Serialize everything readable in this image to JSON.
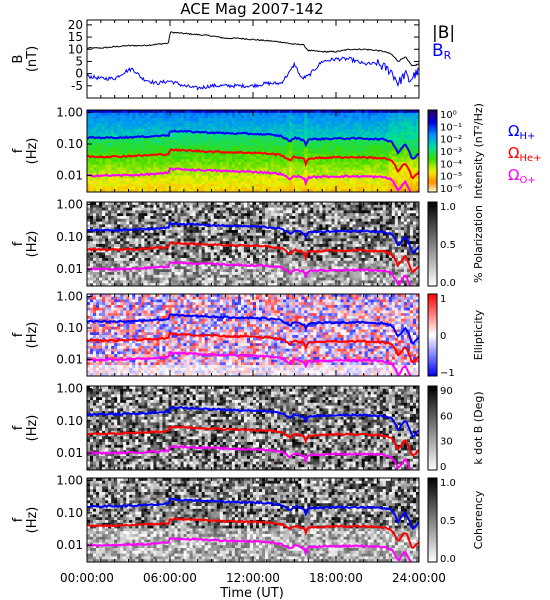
{
  "chart_data": {
    "type": "spectrogram",
    "title": "ACE Mag 2007-142",
    "xlabel": "Time (UT)",
    "xticks": [
      "00:00:00",
      "06:00:00",
      "12:00:00",
      "18:00:00",
      "24:00:00"
    ],
    "xlim_hours": [
      0,
      24
    ],
    "panels": [
      {
        "id": "B",
        "type": "line",
        "ylabel": "B",
        "yunit": "(nT)",
        "ylim": [
          -10,
          22
        ],
        "yticks": [
          "20",
          "15",
          "10",
          "5",
          "0",
          "-5"
        ],
        "legend": [
          "|B|",
          "B_R"
        ],
        "series": [
          {
            "name": "|B|",
            "color": "#000000",
            "x": [
              0,
              1,
              2,
              3,
              4,
              5,
              5.9,
              6.0,
              7,
              8,
              9,
              10,
              11,
              12,
              13,
              14,
              15,
              15.6,
              16,
              17,
              18,
              19,
              20,
              21,
              21.5,
              22,
              22.5,
              23,
              23.5,
              24
            ],
            "y": [
              10.5,
              10.5,
              11,
              11.5,
              11.5,
              12,
              12.5,
              17,
              16.5,
              16,
              15.5,
              14.5,
              14.5,
              14,
              13.5,
              13,
              12,
              12,
              9.5,
              9,
              9,
              10,
              10,
              9.5,
              9,
              8,
              5,
              7,
              3,
              4
            ]
          },
          {
            "name": "B_R",
            "color": "#0000ff",
            "x": [
              0,
              1,
              2,
              2.8,
              3.3,
              4,
              5,
              6,
              7,
              8,
              9,
              10,
              11,
              12,
              13,
              14,
              14.7,
              15,
              15.5,
              16,
              16.5,
              17,
              18,
              19,
              20,
              21,
              22,
              22.5,
              23,
              23.3,
              23.6,
              24
            ],
            "y": [
              -1,
              -2,
              -2,
              1,
              2,
              -2,
              -4,
              -3,
              -5,
              -6,
              -5,
              -5,
              -5,
              -5,
              -4,
              -4,
              1,
              4,
              -2,
              -1,
              2,
              5,
              6,
              6,
              4,
              4,
              1,
              -4,
              0,
              -3,
              -1,
              1
            ]
          }
        ]
      },
      {
        "id": "intensity",
        "type": "heatmap",
        "ylabel": "f",
        "yunit": "(Hz)",
        "yscale": "log",
        "ylim": [
          0.003,
          1.2
        ],
        "yticks": [
          "1.00",
          "0.10",
          "0.01"
        ],
        "colorbar_label": "Intensity (nT²/Hz)",
        "colorbar_ticks": [
          "10⁰",
          "10⁻¹",
          "10⁻²",
          "10⁻³",
          "10⁻⁴",
          "10⁻⁵",
          "10⁻⁶"
        ],
        "colorscale": "rainbow"
      },
      {
        "id": "polarization",
        "type": "heatmap",
        "ylabel": "f",
        "yunit": "(Hz)",
        "yscale": "log",
        "ylim": [
          0.003,
          1.2
        ],
        "yticks": [
          "1.00",
          "0.10",
          "0.01"
        ],
        "colorbar_label": "% Polarization",
        "colorbar_ticks": [
          "1.0",
          "0.5",
          "0.0"
        ],
        "colorscale": "gray"
      },
      {
        "id": "ellipticity",
        "type": "heatmap",
        "ylabel": "f",
        "yunit": "(Hz)",
        "yscale": "log",
        "ylim": [
          0.003,
          1.2
        ],
        "yticks": [
          "1.00",
          "0.10",
          "0.01"
        ],
        "colorbar_label": "Ellipticity",
        "colorbar_ticks": [
          "1",
          "0",
          "−1"
        ],
        "colorscale": "blue-white-red"
      },
      {
        "id": "kdotb",
        "type": "heatmap",
        "ylabel": "f",
        "yunit": "(Hz)",
        "yscale": "log",
        "ylim": [
          0.003,
          1.2
        ],
        "yticks": [
          "1.00",
          "0.10",
          "0.01"
        ],
        "colorbar_label": "k dot B (Deg)",
        "colorbar_ticks": [
          "90",
          "60",
          "30",
          "0"
        ],
        "colorscale": "gray"
      },
      {
        "id": "coherency",
        "type": "heatmap",
        "ylabel": "f",
        "yunit": "(Hz)",
        "yscale": "log",
        "ylim": [
          0.003,
          1.2
        ],
        "yticks": [
          "1.00",
          "0.10",
          "0.01"
        ],
        "colorbar_label": "Coherency",
        "colorbar_ticks": [
          "1.0",
          "0.5",
          "0.0"
        ],
        "colorscale": "gray"
      }
    ],
    "gyrofrequency_lines": [
      {
        "name": "Ω_H+",
        "color": "#0000ff",
        "x": [
          0,
          2,
          4,
          5.9,
          6.0,
          8,
          10,
          12,
          13,
          14,
          14.7,
          15,
          15.7,
          15.8,
          16,
          18,
          20,
          21.5,
          22,
          22.5,
          23,
          23.5,
          24
        ],
        "f": [
          0.16,
          0.16,
          0.17,
          0.19,
          0.26,
          0.24,
          0.22,
          0.21,
          0.2,
          0.18,
          0.12,
          0.16,
          0.13,
          0.09,
          0.14,
          0.15,
          0.15,
          0.14,
          0.12,
          0.05,
          0.1,
          0.03,
          0.05
        ]
      },
      {
        "name": "Ω_He+",
        "color": "#ff0000",
        "x": [
          0,
          2,
          4,
          5.9,
          6.0,
          8,
          10,
          12,
          13,
          14,
          14.7,
          15,
          15.7,
          15.8,
          16,
          18,
          20,
          21.5,
          22,
          22.5,
          23,
          23.5,
          24
        ],
        "f": [
          0.04,
          0.04,
          0.043,
          0.048,
          0.065,
          0.06,
          0.055,
          0.053,
          0.05,
          0.045,
          0.03,
          0.04,
          0.033,
          0.022,
          0.035,
          0.038,
          0.038,
          0.035,
          0.03,
          0.0125,
          0.025,
          0.0075,
          0.0125
        ]
      },
      {
        "name": "Ω_O+",
        "color": "#ff00ff",
        "x": [
          0,
          2,
          4,
          5.9,
          6.0,
          8,
          10,
          12,
          13,
          14,
          14.7,
          15,
          15.7,
          15.8,
          16,
          18,
          20,
          21.5,
          22,
          22.5,
          23,
          23.5,
          24
        ],
        "f": [
          0.01,
          0.01,
          0.0106,
          0.0119,
          0.0163,
          0.015,
          0.0138,
          0.0131,
          0.0125,
          0.0113,
          0.0075,
          0.01,
          0.0081,
          0.0056,
          0.0088,
          0.0094,
          0.0094,
          0.0088,
          0.0075,
          0.0031,
          0.0063,
          0.0019,
          0.0031
        ]
      }
    ],
    "legend": [
      "Ω_H+",
      "Ω_He+",
      "Ω_O+"
    ]
  }
}
